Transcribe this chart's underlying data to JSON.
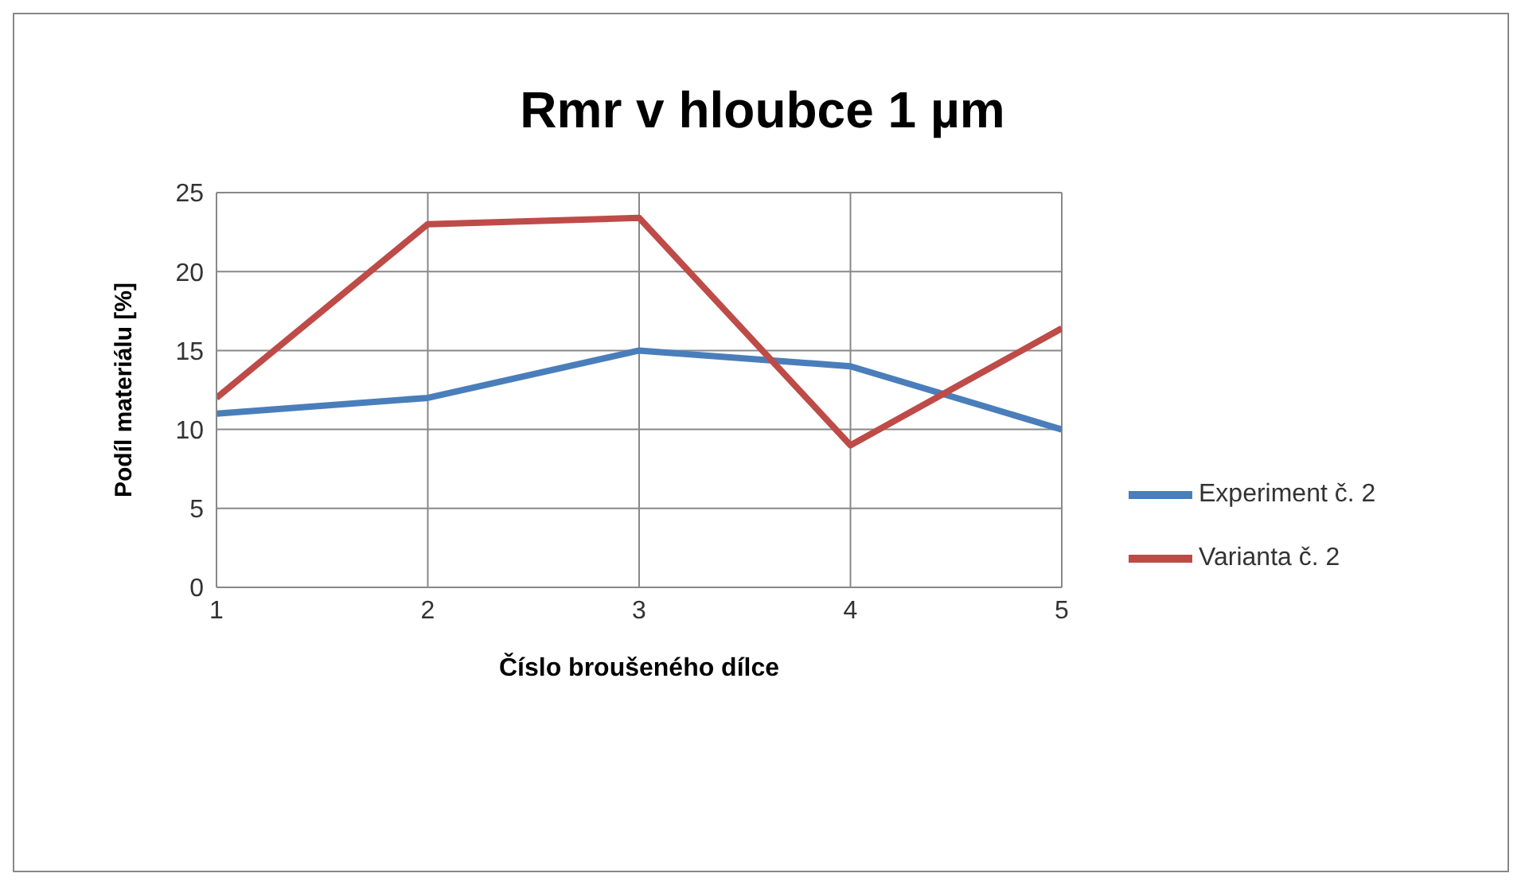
{
  "chart_data": {
    "type": "line",
    "title": "Rmr v hloubce 1 µm",
    "xlabel": "Číslo broušeného dílce",
    "ylabel": "Podíl materiálu [%]",
    "x": [
      1,
      2,
      3,
      4,
      5
    ],
    "series": [
      {
        "name": "Experiment č. 2",
        "color": "#4a7ebb",
        "values": [
          11,
          12,
          15,
          14,
          10
        ]
      },
      {
        "name": "Varianta č. 2",
        "color": "#be4b48",
        "values": [
          12,
          23,
          23.4,
          9,
          16.4
        ]
      }
    ],
    "xlim": [
      1,
      5
    ],
    "xticks": [
      1,
      2,
      3,
      4,
      5
    ],
    "ylim": [
      0,
      25
    ],
    "yticks": [
      0,
      5,
      10,
      15,
      20,
      25
    ],
    "grid": true,
    "legend": "right",
    "marker": "none",
    "line_style": "solid"
  }
}
